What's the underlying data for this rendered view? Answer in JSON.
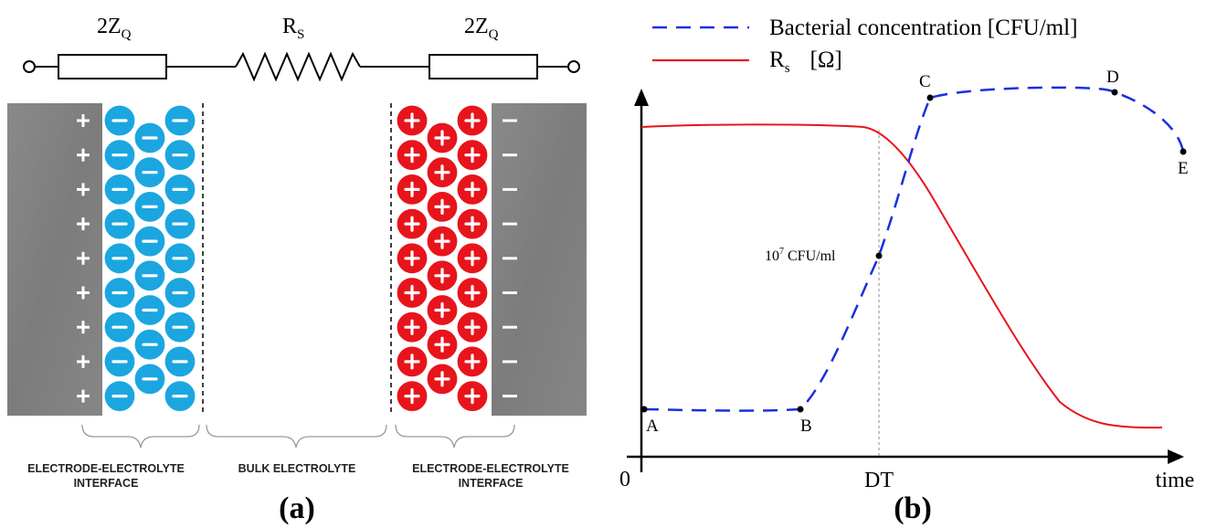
{
  "panel_a": {
    "label": "(a)",
    "circuit": {
      "left_impedance_base": "2Z",
      "left_impedance_sub": "Q",
      "resistor_base": "R",
      "resistor_sub": "S",
      "right_impedance_base": "2Z",
      "right_impedance_sub": "Q"
    },
    "regions": {
      "left_line1": "ELECTRODE-ELECTROLYTE",
      "left_line2": "INTERFACE",
      "middle": "BULK ELECTROLYTE",
      "right_line1": "ELECTRODE-ELECTROLYTE",
      "right_line2": "INTERFACE"
    },
    "colors": {
      "electrode": "#808080",
      "negative_ion": "#1ba6e0",
      "positive_ion": "#e8141c"
    }
  },
  "panel_b": {
    "label": "(b)",
    "legend": [
      {
        "text": "Bacterial concentration [CFU/ml]",
        "style": "dashed",
        "color": "#1a2fe0"
      },
      {
        "text_base": "R",
        "text_sub": "s",
        "text_unit": "[Ω]",
        "style": "solid",
        "color": "#e8141c"
      }
    ],
    "axis": {
      "origin": "0",
      "x_label": "time",
      "x_tick": "DT"
    },
    "points": {
      "A": "A",
      "B": "B",
      "C": "C",
      "D": "D",
      "E": "E"
    },
    "annotation": {
      "base": "10",
      "sup": "7",
      "rest": " CFU/ml"
    }
  }
}
